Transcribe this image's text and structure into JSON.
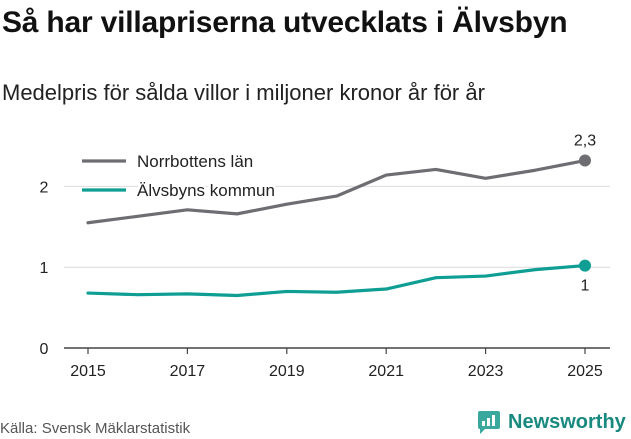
{
  "header": {
    "title": "Så har villapriserna utvecklats i Älvsbyn",
    "subtitle": "Medelpris för sålda villor i miljoner kronor år för år"
  },
  "footer": {
    "source": "Källa: Svensk Mäklarstatistik",
    "brand": "Newsworthy"
  },
  "colors": {
    "norrbotten": "#6e6d72",
    "alvsbyn": "#0e9e94",
    "grid": "#dcdcdc",
    "axis": "#444444"
  },
  "chart_data": {
    "type": "line",
    "title": "Så har villapriserna utvecklats i Älvsbyn",
    "subtitle": "Medelpris för sålda villor i miljoner kronor år för år",
    "xlabel": "",
    "ylabel": "",
    "x": [
      2015,
      2016,
      2017,
      2018,
      2019,
      2020,
      2021,
      2022,
      2023,
      2024,
      2025
    ],
    "xticks": [
      "2015",
      "2017",
      "2019",
      "2021",
      "2023",
      "2025"
    ],
    "yticks": [
      "0",
      "1",
      "2"
    ],
    "ylim": [
      0,
      2.5
    ],
    "xlim": [
      2015,
      2025
    ],
    "legend_position": "top-left",
    "series": [
      {
        "name": "Norrbottens län",
        "values": [
          1.55,
          1.63,
          1.71,
          1.66,
          1.78,
          1.88,
          2.14,
          2.21,
          2.1,
          2.2,
          2.32
        ],
        "end_label": "2,3"
      },
      {
        "name": "Älvsbyns kommun",
        "values": [
          0.68,
          0.66,
          0.67,
          0.65,
          0.7,
          0.69,
          0.73,
          0.87,
          0.89,
          0.97,
          1.02
        ],
        "end_label": "1"
      }
    ]
  }
}
